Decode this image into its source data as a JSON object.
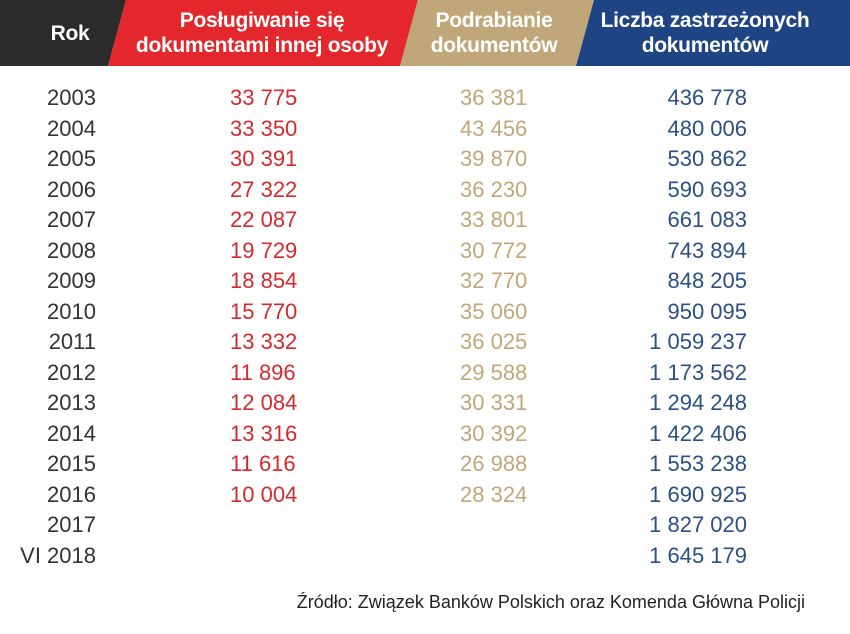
{
  "colors": {
    "year_header_bg": "#2b2b2b",
    "misuse_header_bg": "#e4262d",
    "forgery_header_bg": "#c0a77a",
    "reserved_header_bg": "#1f4484",
    "misuse_text": "#d42a2e",
    "forgery_text": "#c0a77a",
    "reserved_text": "#2b4f86"
  },
  "header": {
    "year": "Rok",
    "misuse": "Posługiwanie się\ndokumentami innej osoby",
    "forgery": "Podrabianie\ndokumentów",
    "reserved": "Liczba zastrzeżonych\ndokumentów"
  },
  "rows": [
    {
      "year": "2003",
      "misuse": "33 775",
      "forgery": "36 381",
      "reserved": "436 778"
    },
    {
      "year": "2004",
      "misuse": "33 350",
      "forgery": "43 456",
      "reserved": "480 006"
    },
    {
      "year": "2005",
      "misuse": "30 391",
      "forgery": "39 870",
      "reserved": "530 862"
    },
    {
      "year": "2006",
      "misuse": "27 322",
      "forgery": "36 230",
      "reserved": "590 693"
    },
    {
      "year": "2007",
      "misuse": "22 087",
      "forgery": "33 801",
      "reserved": "661 083"
    },
    {
      "year": "2008",
      "misuse": "19 729",
      "forgery": "30 772",
      "reserved": "743 894"
    },
    {
      "year": "2009",
      "misuse": "18 854",
      "forgery": "32 770",
      "reserved": "848 205"
    },
    {
      "year": "2010",
      "misuse": "15 770",
      "forgery": "35 060",
      "reserved": "950 095"
    },
    {
      "year": "2011",
      "misuse": "13 332",
      "forgery": "36 025",
      "reserved": "1 059 237"
    },
    {
      "year": "2012",
      "misuse": "11 896",
      "forgery": "29 588",
      "reserved": "1 173 562"
    },
    {
      "year": "2013",
      "misuse": "12 084",
      "forgery": "30 331",
      "reserved": "1 294 248"
    },
    {
      "year": "2014",
      "misuse": "13 316",
      "forgery": "30 392",
      "reserved": "1 422 406"
    },
    {
      "year": "2015",
      "misuse": "11 616",
      "forgery": "26 988",
      "reserved": "1 553 238"
    },
    {
      "year": "2016",
      "misuse": "10 004",
      "forgery": "28 324",
      "reserved": "1 690 925"
    },
    {
      "year": "2017",
      "misuse": "",
      "forgery": "",
      "reserved": "1 827 020"
    },
    {
      "year": "VI 2018",
      "misuse": "",
      "forgery": "",
      "reserved": "1 645 179"
    }
  ],
  "source": "Źródło: Związek Banków Polskich oraz Komenda Główna Policji"
}
